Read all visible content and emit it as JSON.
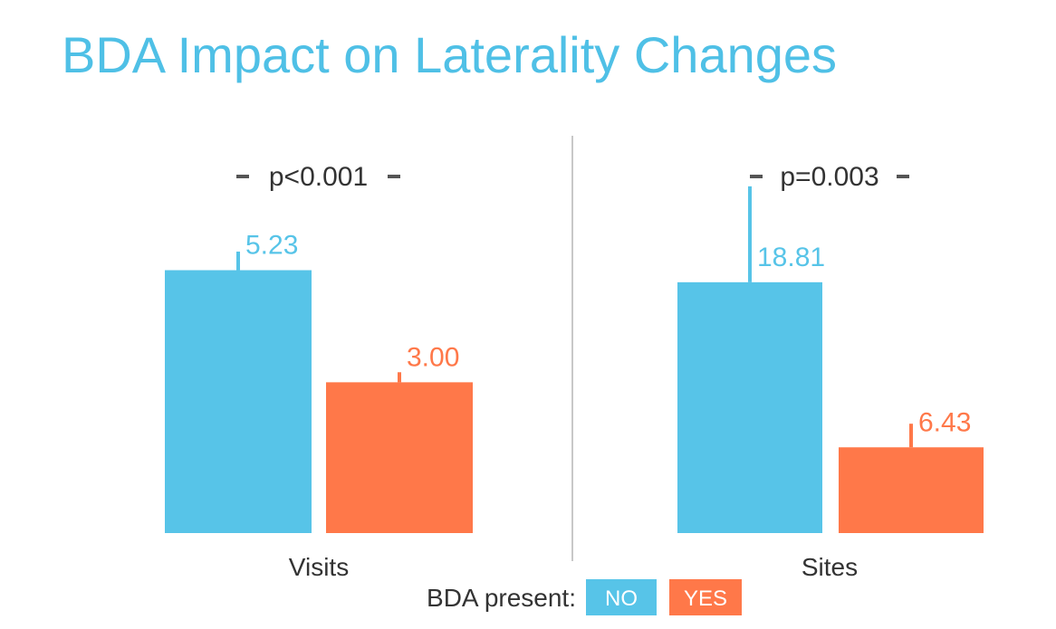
{
  "colors": {
    "no": "#57C4E8",
    "yes": "#FF7849",
    "title": "#4FC0E6",
    "text": "#333333",
    "divider": "#C8C8C8",
    "pmark": "#555555"
  },
  "chart_data": {
    "type": "bar",
    "title": "BDA Impact on Laterality Changes",
    "legend": {
      "label": "BDA present:",
      "entries": [
        "NO",
        "YES"
      ],
      "placement": "bottom-center"
    },
    "panels": [
      {
        "category": "Visits",
        "p_value": "p<0.001",
        "ymax": 6.5,
        "series": [
          {
            "name": "NO",
            "value": 5.23,
            "label": "5.23",
            "err_upper": 5.6
          },
          {
            "name": "YES",
            "value": 3.0,
            "label": "3.00",
            "err_upper": 3.2
          }
        ]
      },
      {
        "category": "Sites",
        "p_value": "p=0.003",
        "ymax": 24.5,
        "series": [
          {
            "name": "NO",
            "value": 18.81,
            "label": "18.81",
            "err_upper": 26.0
          },
          {
            "name": "YES",
            "value": 6.43,
            "label": "6.43",
            "err_upper": 8.2
          }
        ]
      }
    ]
  }
}
